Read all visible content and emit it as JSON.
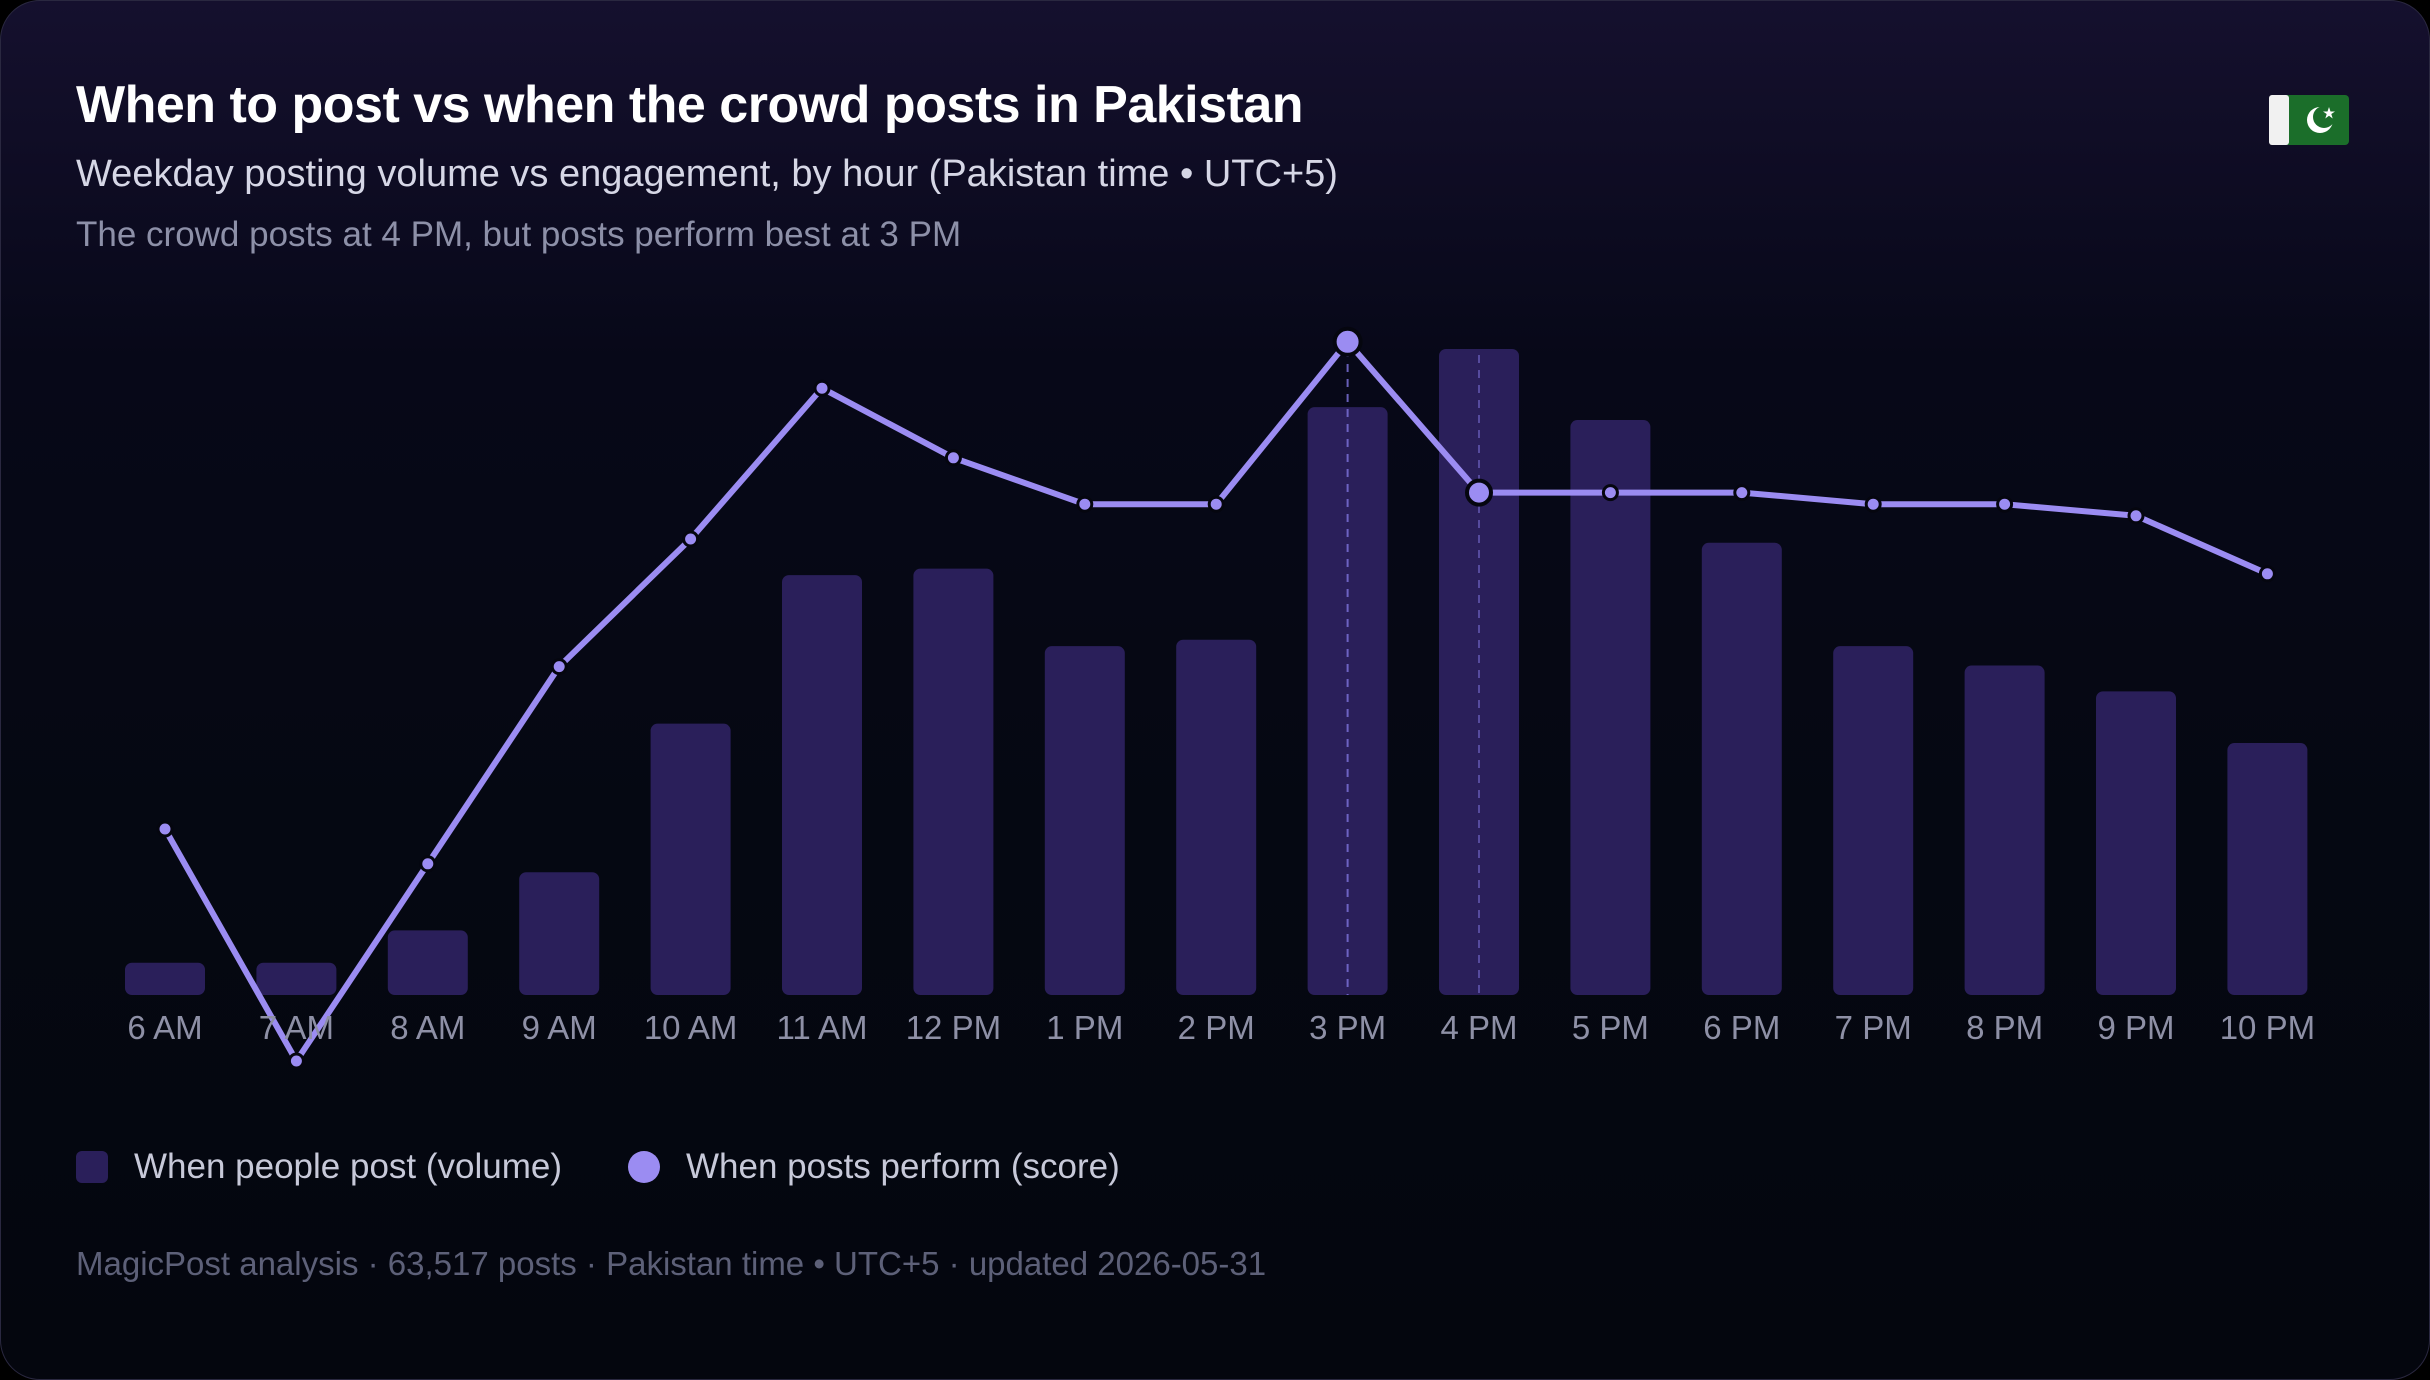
{
  "header": {
    "title": "When to post vs when the crowd posts in Pakistan",
    "subtitle": "Weekday posting volume vs engagement, by hour (Pakistan time • UTC+5)",
    "insight": "The crowd posts at 4 PM, but posts perform best at 3 PM",
    "flag_icon": "pakistan-flag-icon"
  },
  "legend": {
    "volume_label": "When people post (volume)",
    "score_label": "When posts perform (score)"
  },
  "footer": {
    "text": "MagicPost analysis · 63,517 posts · Pakistan time • UTC+5 · updated 2026-05-31"
  },
  "colors": {
    "bar": "#2a1f5a",
    "line": "#9b8cf2",
    "axis_text": "#8e90a6",
    "highlight_guide": "#7a6fd6"
  },
  "chart_data": {
    "type": "bar",
    "categories": [
      "6 AM",
      "7 AM",
      "8 AM",
      "9 AM",
      "10 AM",
      "11 AM",
      "12 PM",
      "1 PM",
      "2 PM",
      "3 PM",
      "4 PM",
      "5 PM",
      "6 PM",
      "7 PM",
      "8 PM",
      "9 PM",
      "10 PM"
    ],
    "series": [
      {
        "name": "When people post (volume)",
        "kind": "bar",
        "values": [
          5,
          5,
          10,
          19,
          42,
          65,
          66,
          54,
          55,
          91,
          100,
          89,
          70,
          54,
          51,
          47,
          39
        ]
      },
      {
        "name": "When posts perform (score)",
        "kind": "line",
        "values": [
          50,
          30,
          47,
          64,
          75,
          88,
          82,
          78,
          78,
          92,
          79,
          79,
          79,
          78,
          78,
          77,
          72
        ]
      }
    ],
    "ylim": [
      0,
      100
    ],
    "best_performance_hour": "3 PM",
    "peak_volume_hour": "4 PM",
    "grid": false,
    "legend_position": "bottom-left"
  }
}
